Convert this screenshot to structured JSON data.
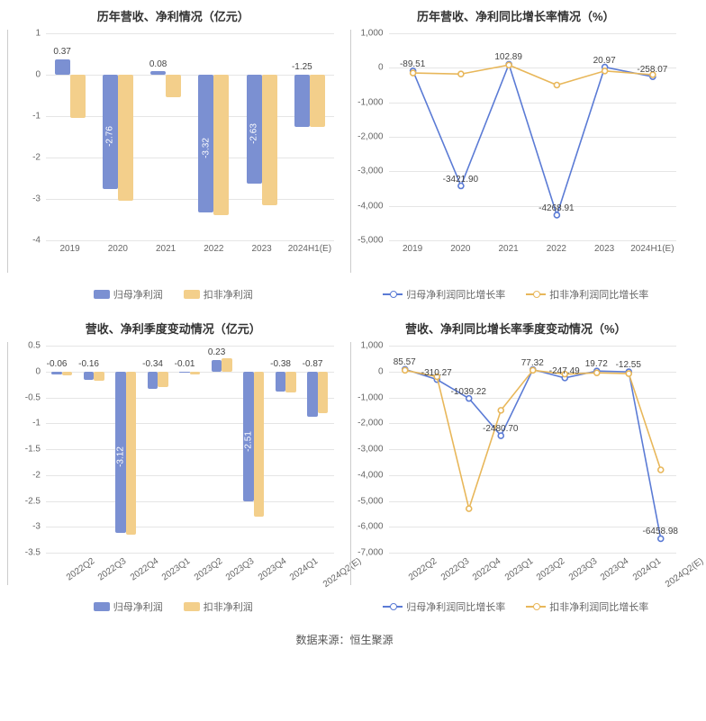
{
  "colors": {
    "bar_a": "#7b90d2",
    "bar_b": "#f3cf8b",
    "line_a": "#5b7bd5",
    "line_b": "#e8b75a",
    "grid": "#e5e5e5",
    "bg": "#ffffff",
    "text": "#333333",
    "axis_text": "#666666"
  },
  "chart1": {
    "title": "历年营收、净利情况（亿元）",
    "type": "bar",
    "categories": [
      "2019",
      "2020",
      "2021",
      "2022",
      "2023",
      "2024H1(E)"
    ],
    "series_a_name": "归母净利润",
    "series_b_name": "扣非净利润",
    "series_a": [
      0.37,
      -2.76,
      0.08,
      -3.32,
      -2.63,
      -1.25
    ],
    "series_b": [
      -1.05,
      -3.05,
      -0.55,
      -3.4,
      -3.15,
      -1.25
    ],
    "labels": [
      {
        "cat": 0,
        "series": "a",
        "text": "0.37",
        "pos": "above"
      },
      {
        "cat": 1,
        "series": "a",
        "text": "-2.76",
        "pos": "inside_vert"
      },
      {
        "cat": 2,
        "series": "a",
        "text": "0.08",
        "pos": "above"
      },
      {
        "cat": 3,
        "series": "a",
        "text": "-3.32",
        "pos": "inside_vert"
      },
      {
        "cat": 4,
        "series": "a",
        "text": "-2.63",
        "pos": "inside_vert"
      },
      {
        "cat": 5,
        "series": "a",
        "text": "-1.25",
        "pos": "above"
      }
    ],
    "ylim": [
      -4,
      1
    ],
    "ytick_step": 1,
    "bar_width": 0.32,
    "x_rotate": false
  },
  "chart2": {
    "title": "历年营收、净利同比增长率情况（%）",
    "type": "line",
    "categories": [
      "2019",
      "2020",
      "2021",
      "2022",
      "2023",
      "2024H1(E)"
    ],
    "series_a_name": "归母净利润同比增长率",
    "series_b_name": "扣非净利润同比增长率",
    "series_a": [
      -89.51,
      -3421.9,
      102.89,
      -4268.91,
      20.97,
      -258.07
    ],
    "series_b": [
      -150,
      -180,
      80,
      -500,
      -90,
      -200
    ],
    "labels": [
      {
        "cat": 0,
        "series": "a",
        "text": "-89.51"
      },
      {
        "cat": 1,
        "series": "a",
        "text": "-3421.90"
      },
      {
        "cat": 2,
        "series": "a",
        "text": "102.89"
      },
      {
        "cat": 3,
        "series": "a",
        "text": "-4268.91"
      },
      {
        "cat": 4,
        "series": "a",
        "text": "20.97"
      },
      {
        "cat": 5,
        "series": "a",
        "text": "-258.07"
      }
    ],
    "ylim": [
      -5000,
      1000
    ],
    "ytick_step": 1000,
    "x_rotate": false
  },
  "chart3": {
    "title": "营收、净利季度变动情况（亿元）",
    "type": "bar",
    "categories": [
      "2022Q2",
      "2022Q3",
      "2022Q4",
      "2023Q1",
      "2023Q2",
      "2023Q3",
      "2023Q4",
      "2024Q1",
      "2024Q2(E)"
    ],
    "series_a_name": "归母净利润",
    "series_b_name": "扣非净利润",
    "series_a": [
      -0.06,
      -0.16,
      -3.12,
      -0.34,
      -0.01,
      0.23,
      -2.51,
      -0.38,
      -0.87
    ],
    "series_b": [
      -0.08,
      -0.18,
      -3.15,
      -0.3,
      -0.05,
      0.25,
      -2.8,
      -0.4,
      -0.8
    ],
    "labels": [
      {
        "cat": 0,
        "series": "a",
        "text": "-0.06",
        "pos": "above"
      },
      {
        "cat": 1,
        "series": "a",
        "text": "-0.16",
        "pos": "above"
      },
      {
        "cat": 2,
        "series": "a",
        "text": "-3.12",
        "pos": "inside_vert"
      },
      {
        "cat": 3,
        "series": "a",
        "text": "-0.34",
        "pos": "above"
      },
      {
        "cat": 4,
        "series": "a",
        "text": "-0.01",
        "pos": "above"
      },
      {
        "cat": 5,
        "series": "a",
        "text": "0.23",
        "pos": "above"
      },
      {
        "cat": 6,
        "series": "a",
        "text": "-2.51",
        "pos": "inside_vert"
      },
      {
        "cat": 7,
        "series": "a",
        "text": "-0.38",
        "pos": "above"
      },
      {
        "cat": 8,
        "series": "a",
        "text": "-0.87",
        "pos": "above"
      }
    ],
    "ylim": [
      -3.5,
      0.5
    ],
    "ytick_step": 0.5,
    "bar_width": 0.32,
    "x_rotate": true
  },
  "chart4": {
    "title": "营收、净利同比增长率季度变动情况（%）",
    "type": "line",
    "categories": [
      "2022Q2",
      "2022Q3",
      "2022Q4",
      "2023Q1",
      "2023Q2",
      "2023Q3",
      "2023Q4",
      "2024Q1",
      "2024Q2(E)"
    ],
    "series_a_name": "归母净利润同比增长率",
    "series_b_name": "扣非净利润同比增长率",
    "series_a": [
      85.57,
      -310.27,
      -1039.22,
      -2480.7,
      77.32,
      -247.49,
      19.72,
      -12.55,
      -6458.98
    ],
    "series_b": [
      50,
      -200,
      -5300,
      -1500,
      50,
      -100,
      -50,
      -80,
      -3800
    ],
    "labels": [
      {
        "cat": 0,
        "series": "a",
        "text": "85.57"
      },
      {
        "cat": 1,
        "series": "a",
        "text": "-310.27"
      },
      {
        "cat": 2,
        "series": "a",
        "text": "-1039.22"
      },
      {
        "cat": 3,
        "series": "a",
        "text": "-2480.70"
      },
      {
        "cat": 4,
        "series": "a",
        "text": "77.32"
      },
      {
        "cat": 5,
        "series": "a",
        "text": "-247.49"
      },
      {
        "cat": 6,
        "series": "a",
        "text": "19.72"
      },
      {
        "cat": 7,
        "series": "a",
        "text": "-12.55"
      },
      {
        "cat": 8,
        "series": "a",
        "text": "-6458.98"
      }
    ],
    "ylim": [
      -7000,
      1000
    ],
    "ytick_step": 1000,
    "x_rotate": true
  },
  "footer": "数据来源：恒生聚源"
}
